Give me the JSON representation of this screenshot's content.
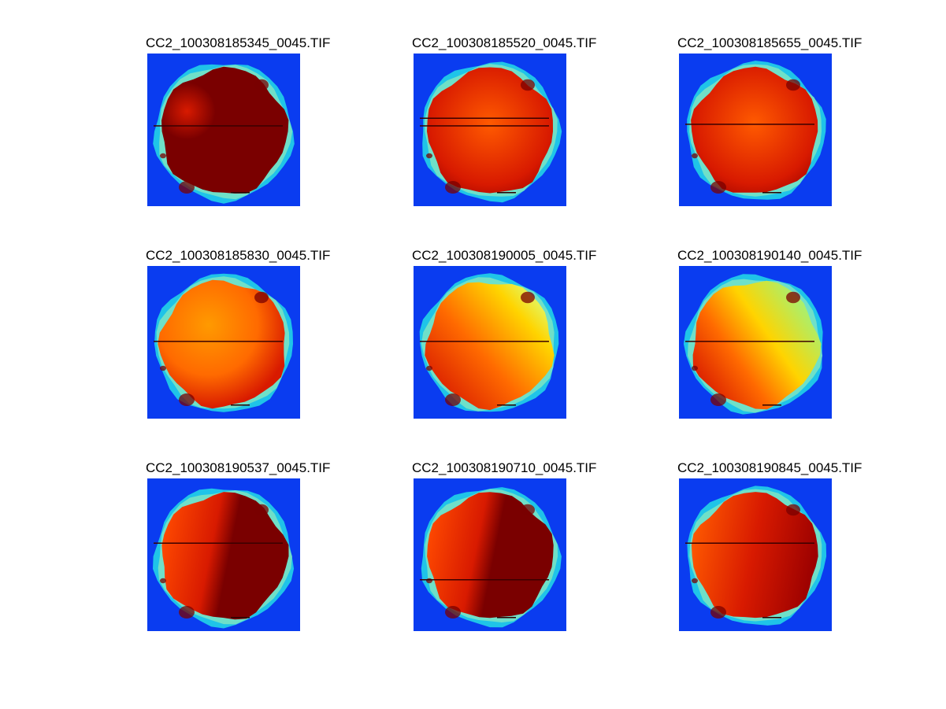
{
  "figure": {
    "panels": [
      {
        "title": "CC2_100308185345_0045.TIF",
        "scheme": "dark-full",
        "scans": [
          0.47
        ]
      },
      {
        "title": "CC2_100308185520_0045.TIF",
        "scheme": "red-orange",
        "scans": [
          0.42,
          0.47
        ]
      },
      {
        "title": "CC2_100308185655_0045.TIF",
        "scheme": "red-orange",
        "scans": [
          0.46
        ]
      },
      {
        "title": "CC2_100308185830_0045.TIF",
        "scheme": "orange",
        "scans": [
          0.49
        ]
      },
      {
        "title": "CC2_100308190005_0045.TIF",
        "scheme": "orange-yellow",
        "scans": [
          0.49
        ]
      },
      {
        "title": "CC2_100308190140_0045.TIF",
        "scheme": "yellow-green",
        "scans": [
          0.49
        ]
      },
      {
        "title": "CC2_100308190537_0045.TIF",
        "scheme": "dark-diagonal",
        "scans": [
          0.42
        ]
      },
      {
        "title": "CC2_100308190710_0045.TIF",
        "scheme": "dark-diagonal",
        "scans": [
          0.66
        ]
      },
      {
        "title": "CC2_100308190845_0045.TIF",
        "scheme": "red-diagonal",
        "scans": [
          0.42
        ]
      }
    ],
    "colors": {
      "background": "#0a3cf0",
      "ring_outer": "#1fc4e8",
      "ring_inner": "#6fe0c8",
      "darkred": "#7a0000",
      "red": "#d81a00",
      "orange": "#ff6a00",
      "yellow": "#ffd400",
      "green": "#a8f070"
    }
  }
}
